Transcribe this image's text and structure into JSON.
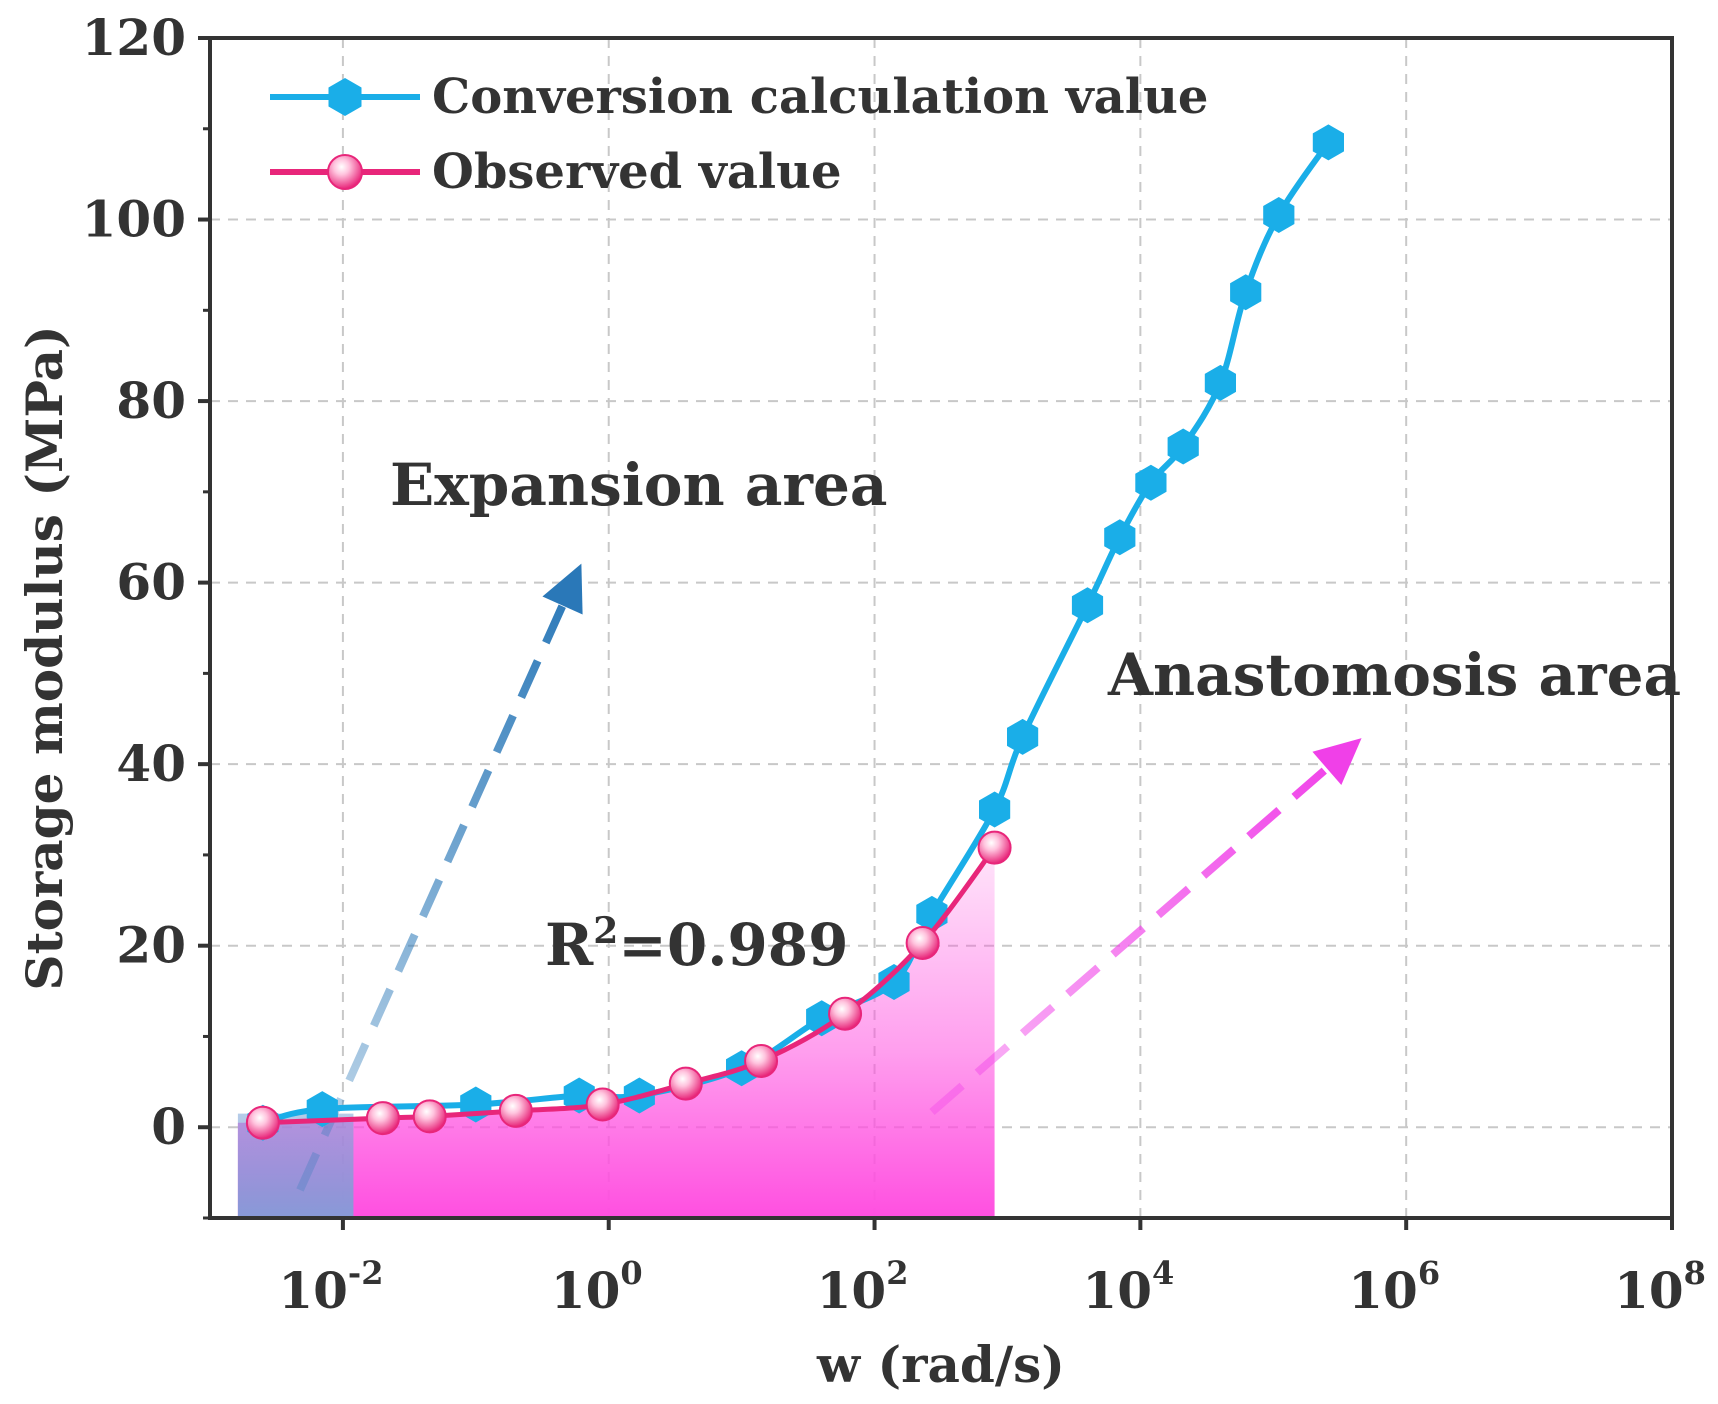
{
  "chart_data": {
    "type": "line",
    "xscale": "log10",
    "xlabel": "w (rad/s)",
    "ylabel": "Storage modulus (MPa)",
    "xlim_exp": [
      -3,
      8
    ],
    "ylim": [
      -10,
      120
    ],
    "grid": true,
    "legend_position": "top-left",
    "x_ticks": [
      {
        "exp": -2,
        "base": "10",
        "sup": "-2"
      },
      {
        "exp": 0,
        "base": "10",
        "sup": "0"
      },
      {
        "exp": 2,
        "base": "10",
        "sup": "2"
      },
      {
        "exp": 4,
        "base": "10",
        "sup": "4"
      },
      {
        "exp": 6,
        "base": "10",
        "sup": "6"
      },
      {
        "exp": 8,
        "base": "10",
        "sup": "8"
      }
    ],
    "y_ticks": [
      0,
      20,
      40,
      60,
      80,
      100,
      120
    ],
    "series": [
      {
        "name": "Conversion calculation value",
        "color": "#1aaee8",
        "marker": "hexagon",
        "x": [
          0.0025,
          0.007,
          0.1,
          0.6,
          1.7,
          10,
          40,
          140,
          270,
          800,
          1300,
          4000,
          7000,
          12000,
          21000,
          40000,
          62000,
          110000,
          260000
        ],
        "y": [
          0.5,
          2,
          2.5,
          3.5,
          3.5,
          6.5,
          12,
          16,
          23.5,
          35,
          43,
          57.5,
          65,
          71,
          75,
          82,
          92,
          100.5,
          108.5
        ]
      },
      {
        "name": "Observed value",
        "color": "#e8267a",
        "marker": "sphere",
        "x": [
          0.0025,
          0.02,
          0.045,
          0.2,
          0.9,
          3.8,
          14,
          60,
          230,
          800
        ],
        "y": [
          0.5,
          1,
          1.2,
          1.8,
          2.5,
          4.8,
          7.3,
          12.5,
          20.3,
          30.8
        ]
      }
    ],
    "annotations": {
      "expansion": "Expansion area",
      "anastomosis": "Anastomosis area",
      "r2_prefix": "R",
      "r2_sup": "2",
      "r2_value": "=0.989"
    },
    "shaded_regions": {
      "expansion_x_to": 0.012,
      "observed_x_to": 800
    },
    "colors": {
      "frame": "#333333",
      "grid": "#c8c8c8",
      "expansion_arrow": "#2a78b8",
      "anastomosis_arrow": "#f040e8",
      "fill_pink": "#ff4fe0",
      "fill_blue": "#7aa2d6"
    }
  }
}
